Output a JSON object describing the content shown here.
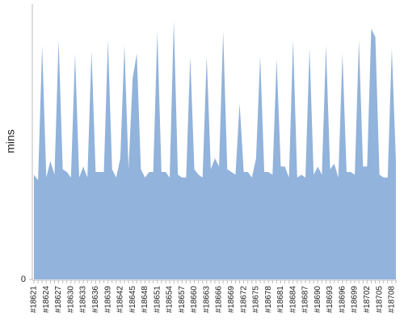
{
  "chart_data": {
    "type": "area",
    "y_label": "mins",
    "color": "#91b3dc",
    "categories": [
      "#18621",
      null,
      null,
      "#18624",
      null,
      null,
      "#18627",
      null,
      null,
      "#18630",
      null,
      null,
      "#18633",
      null,
      null,
      "#18636",
      null,
      null,
      "#18639",
      null,
      null,
      "#18642",
      null,
      null,
      "#18645",
      null,
      null,
      "#18648",
      null,
      null,
      "#18651",
      null,
      null,
      "#18654",
      null,
      null,
      "#18657",
      null,
      null,
      "#18660",
      null,
      null,
      "#18663",
      null,
      null,
      "#18666",
      null,
      null,
      "#18669",
      null,
      null,
      "#18672",
      null,
      null,
      "#18675",
      null,
      null,
      "#18678",
      null,
      null,
      "#18681",
      null,
      null,
      "#18684",
      null,
      null,
      "#18687",
      null,
      null,
      "#18690",
      null,
      null,
      "#18693",
      null,
      null,
      "#18696",
      null,
      null,
      "#18699",
      null,
      null,
      "#18702",
      null,
      null,
      "#18705",
      null,
      null,
      "#18708",
      null
    ],
    "values": [
      38,
      36,
      85,
      37,
      43,
      38,
      87,
      40,
      39,
      37,
      82,
      37,
      41,
      37,
      83,
      39,
      39,
      39,
      87,
      40,
      37,
      44,
      85,
      40,
      73,
      82,
      40,
      37,
      39,
      39,
      90,
      39,
      39,
      37,
      94,
      38,
      37,
      37,
      81,
      40,
      38,
      37,
      81,
      40,
      44,
      41,
      90,
      40,
      39,
      38,
      64,
      39,
      39,
      37,
      44,
      81,
      39,
      39,
      38,
      80,
      41,
      41,
      37,
      87,
      37,
      38,
      37,
      84,
      38,
      41,
      38,
      85,
      40,
      42,
      37,
      82,
      39,
      39,
      38,
      87,
      41,
      41,
      91,
      88,
      38,
      37,
      37,
      84,
      43
    ],
    "ylim": [
      0,
      100
    ],
    "yticks": [
      0
    ]
  }
}
